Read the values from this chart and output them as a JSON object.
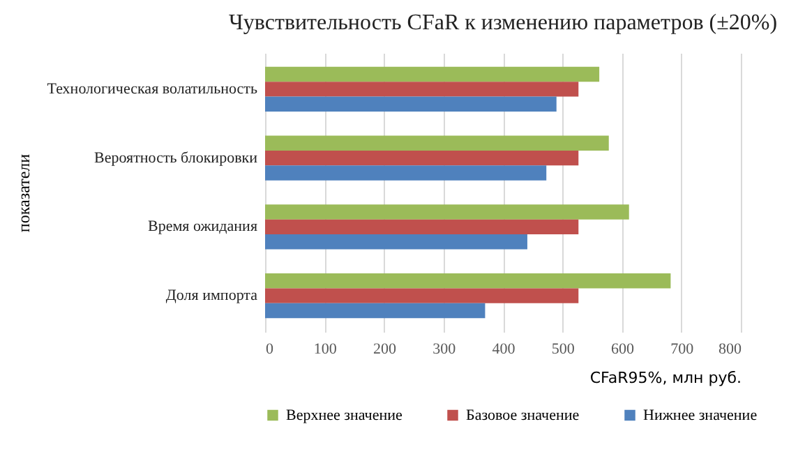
{
  "chart_data": {
    "type": "bar",
    "orientation": "horizontal",
    "title": "Чувствительность CFaR к изменению параметров (±20%)",
    "xlabel": "CFaR95%, млн руб.",
    "ylabel": "показатели",
    "categories": [
      "Технологическая волатильность",
      "Вероятность блокировки",
      "Время ожидания",
      "Доля импорта"
    ],
    "series": [
      {
        "name": "Верхнее значение",
        "color": "#9bbb59",
        "values": [
          562,
          578,
          612,
          682
        ]
      },
      {
        "name": "Базовое значение",
        "color": "#c0504d",
        "values": [
          527,
          527,
          527,
          527
        ]
      },
      {
        "name": "Нижнее значение",
        "color": "#4f81bd",
        "values": [
          490,
          473,
          441,
          370
        ]
      }
    ],
    "xlim": [
      0,
      800
    ],
    "xticks": [
      0,
      100,
      200,
      300,
      400,
      500,
      600,
      700,
      800
    ],
    "grid": "x",
    "legend": "bottom"
  }
}
